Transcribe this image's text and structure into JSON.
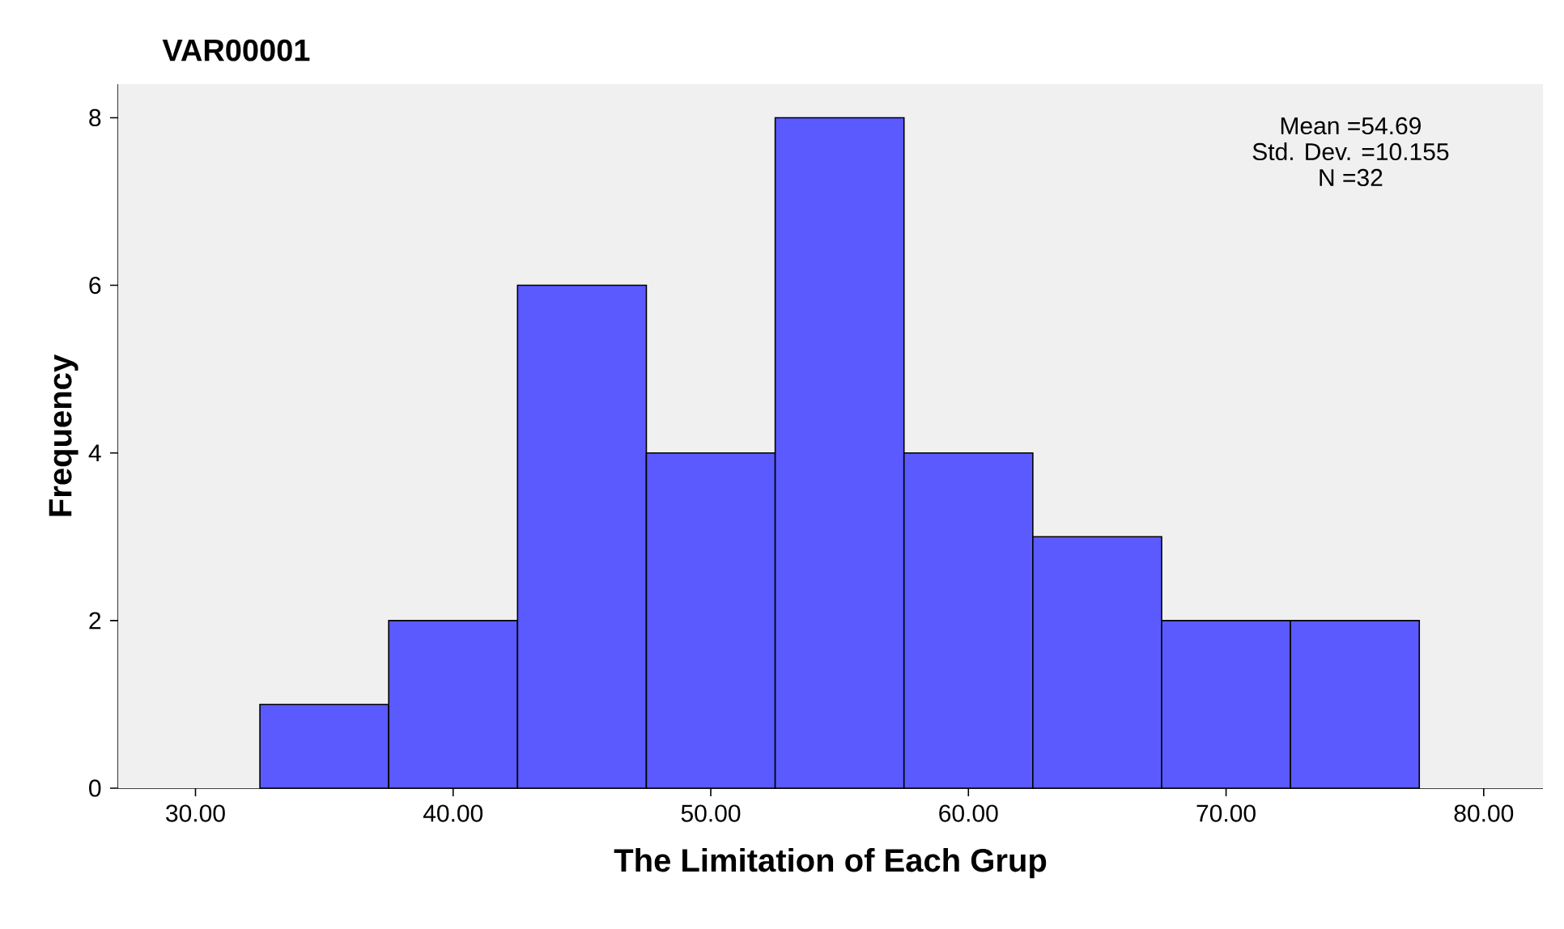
{
  "chart_data": {
    "type": "histogram",
    "title": "VAR00001",
    "xlabel": "The Limitation of Each Grup",
    "ylabel": "Frequency",
    "bins": [
      32.5,
      37.5,
      42.5,
      47.5,
      52.5,
      57.5,
      62.5,
      67.5,
      72.5,
      77.5
    ],
    "values": [
      1,
      2,
      6,
      4,
      8,
      4,
      3,
      2,
      2
    ],
    "color": "#5a5aff",
    "xlim": [
      27,
      82.3
    ],
    "ylim": [
      0,
      8.4
    ],
    "xticks": [
      {
        "value": 30,
        "label": "30.00"
      },
      {
        "value": 40,
        "label": "40.00"
      },
      {
        "value": 50,
        "label": "50.00"
      },
      {
        "value": 60,
        "label": "60.00"
      },
      {
        "value": 70,
        "label": "70.00"
      },
      {
        "value": 80,
        "label": "80.00"
      }
    ],
    "yticks": [
      0,
      2,
      4,
      6,
      8
    ],
    "grid": false,
    "annotations": [
      "Mean =54.69",
      "Std. Dev. =10.155",
      "N =32"
    ]
  }
}
